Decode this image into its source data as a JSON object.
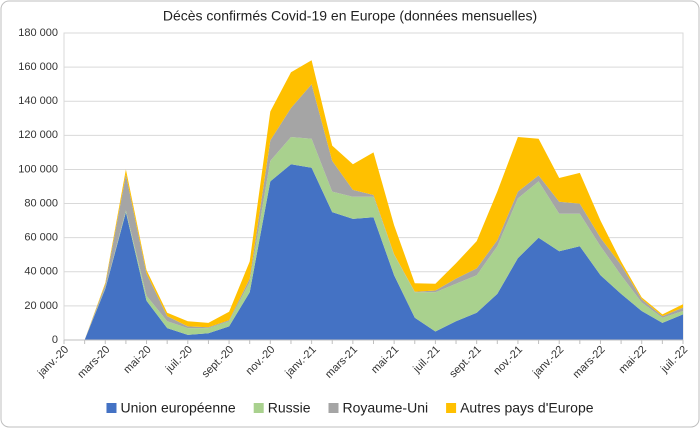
{
  "chart_data": {
    "type": "stacked-area",
    "title": "Décès confirmés Covid-19 en Europe (données mensuelles)",
    "categories": [
      "janv.-20",
      null,
      "mars-20",
      null,
      "mai-20",
      null,
      "juil.-20",
      null,
      "sept.-20",
      null,
      "nov.-20",
      null,
      "janv.-21",
      null,
      "mars-21",
      null,
      "mai-21",
      null,
      "juil.-21",
      null,
      "sept.-21",
      null,
      "nov.-21",
      null,
      "janv.-22",
      null,
      "mars-22",
      null,
      "mai-22",
      null,
      "juil.-22"
    ],
    "series": [
      {
        "name": "Union européenne",
        "color": "#4472c4",
        "values": [
          0,
          0,
          30000,
          75000,
          23000,
          7000,
          3000,
          4000,
          8000,
          28000,
          93000,
          103000,
          101000,
          75000,
          71000,
          72000,
          38000,
          13000,
          5000,
          11000,
          16000,
          27000,
          48000,
          60000,
          52000,
          55000,
          38000,
          27000,
          17000,
          10000,
          15000
        ]
      },
      {
        "name": "Russie",
        "color": "#a9d18e",
        "values": [
          0,
          0,
          500,
          1000,
          3000,
          4000,
          4000,
          3000,
          3000,
          6000,
          12000,
          16000,
          17000,
          12000,
          13000,
          12000,
          12000,
          15000,
          23000,
          22000,
          22000,
          28000,
          35000,
          33000,
          22000,
          19000,
          17000,
          11000,
          5000,
          3000,
          2000
        ]
      },
      {
        "name": "Royaume-Uni",
        "color": "#a5a5a5",
        "values": [
          0,
          0,
          2000,
          21000,
          13000,
          3000,
          1000,
          500,
          600,
          2000,
          12000,
          17000,
          32000,
          18000,
          4000,
          1000,
          300,
          300,
          1000,
          3000,
          4000,
          3500,
          4000,
          3500,
          7000,
          6000,
          5000,
          6000,
          2000,
          1000,
          2000
        ]
      },
      {
        "name": "Autres pays d'Europe",
        "color": "#ffc000",
        "values": [
          0,
          0,
          1000,
          3000,
          2000,
          2000,
          3000,
          2500,
          5000,
          10000,
          17000,
          21000,
          14000,
          9000,
          15000,
          25000,
          17000,
          5000,
          4000,
          9000,
          16000,
          28500,
          32000,
          21500,
          14000,
          18000,
          10000,
          2000,
          1000,
          1000,
          2000
        ]
      }
    ],
    "ylim": [
      0,
      180000
    ],
    "yticks": [
      0,
      {
        "value": 20000,
        "label": "20 000"
      },
      {
        "value": 40000,
        "label": "40 000"
      },
      {
        "value": 60000,
        "label": "60 000"
      },
      {
        "value": 80000,
        "label": "80 000"
      },
      {
        "value": 100000,
        "label": "100 000"
      },
      {
        "value": 120000,
        "label": "120 000"
      },
      {
        "value": 140000,
        "label": "140 000"
      },
      {
        "value": 160000,
        "label": "160 000"
      },
      {
        "value": 180000,
        "label": "180 000"
      }
    ],
    "grid": true,
    "legend": "bottom"
  }
}
